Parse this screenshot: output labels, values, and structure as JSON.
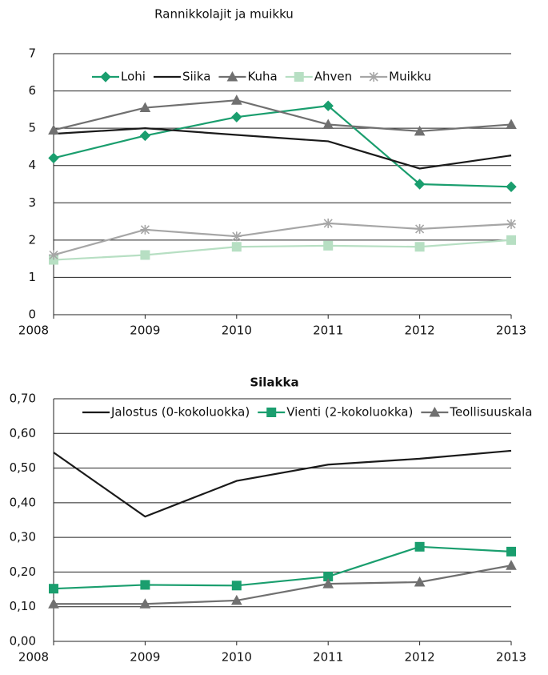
{
  "chart_data": [
    {
      "type": "line",
      "title": "Rannikkolajit ja muikku",
      "categories": [
        "2008",
        "2009",
        "2010",
        "2011",
        "2012",
        "2013"
      ],
      "series": [
        {
          "name": "Lohi",
          "color": "#1a9e6e",
          "marker": "diamond",
          "values": [
            4.2,
            4.8,
            5.3,
            5.6,
            3.5,
            3.43
          ]
        },
        {
          "name": "Siika",
          "color": "#1a1a1a",
          "marker": "none",
          "values": [
            4.85,
            5.0,
            4.82,
            4.65,
            3.92,
            4.27
          ]
        },
        {
          "name": "Kuha",
          "color": "#707070",
          "marker": "triangle",
          "values": [
            4.95,
            5.55,
            5.75,
            5.1,
            4.92,
            5.1
          ]
        },
        {
          "name": "Ahven",
          "color": "#b7dfc3",
          "marker": "square",
          "values": [
            1.47,
            1.6,
            1.82,
            1.85,
            1.82,
            2.0
          ]
        },
        {
          "name": "Muikku",
          "color": "#a6a6a6",
          "marker": "star",
          "values": [
            1.6,
            2.28,
            2.1,
            2.45,
            2.3,
            2.43
          ]
        }
      ],
      "ylim": [
        0,
        7
      ],
      "yticks": [
        0,
        1,
        2,
        3,
        4,
        5,
        6,
        7
      ],
      "grid": true
    },
    {
      "type": "line",
      "title": "Silakka",
      "categories": [
        "2008",
        "2009",
        "2010",
        "2011",
        "2012",
        "2013"
      ],
      "series": [
        {
          "name": "Jalostus (0-kokoluokka)",
          "color": "#1a1a1a",
          "marker": "none",
          "values": [
            0.545,
            0.36,
            0.463,
            0.51,
            0.527,
            0.55
          ]
        },
        {
          "name": "Vienti (2-kokoluokka)",
          "color": "#1a9e6e",
          "marker": "square",
          "values": [
            0.152,
            0.163,
            0.161,
            0.187,
            0.273,
            0.259
          ]
        },
        {
          "name": "Teollisuuskala",
          "color": "#707070",
          "marker": "triangle",
          "values": [
            0.108,
            0.108,
            0.118,
            0.166,
            0.171,
            0.219
          ]
        }
      ],
      "ylim": [
        0,
        0.7
      ],
      "yticks": [
        {
          "value": 0,
          "label": "0,00"
        },
        {
          "value": 0.1,
          "label": "0,10"
        },
        {
          "value": 0.2,
          "label": "0,20"
        },
        {
          "value": 0.3,
          "label": "0,30"
        },
        {
          "value": 0.4,
          "label": "0,40"
        },
        {
          "value": 0.5,
          "label": "0,50"
        },
        {
          "value": 0.6,
          "label": "0,60"
        },
        {
          "value": 0.7,
          "label": "0,70"
        }
      ],
      "grid": true
    }
  ]
}
